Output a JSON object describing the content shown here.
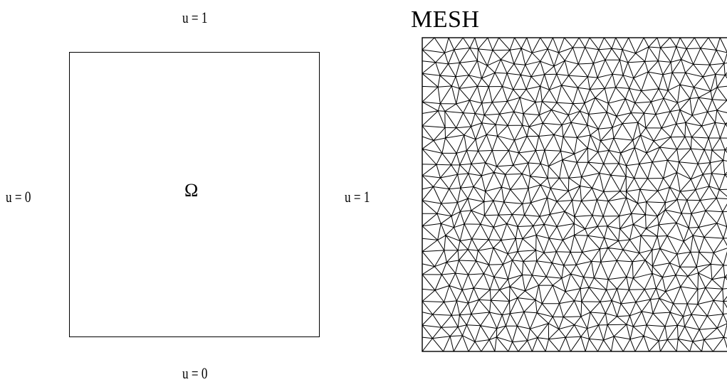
{
  "domain_diagram": {
    "top_label": "u = 1",
    "bottom_label": "u = 0",
    "left_label": "u = 0",
    "right_label": "u = 1",
    "region_label": "Ω"
  },
  "mesh_panel": {
    "title": "MESH",
    "element_type": "unstructured triangular mesh",
    "line_color": "#000000"
  }
}
